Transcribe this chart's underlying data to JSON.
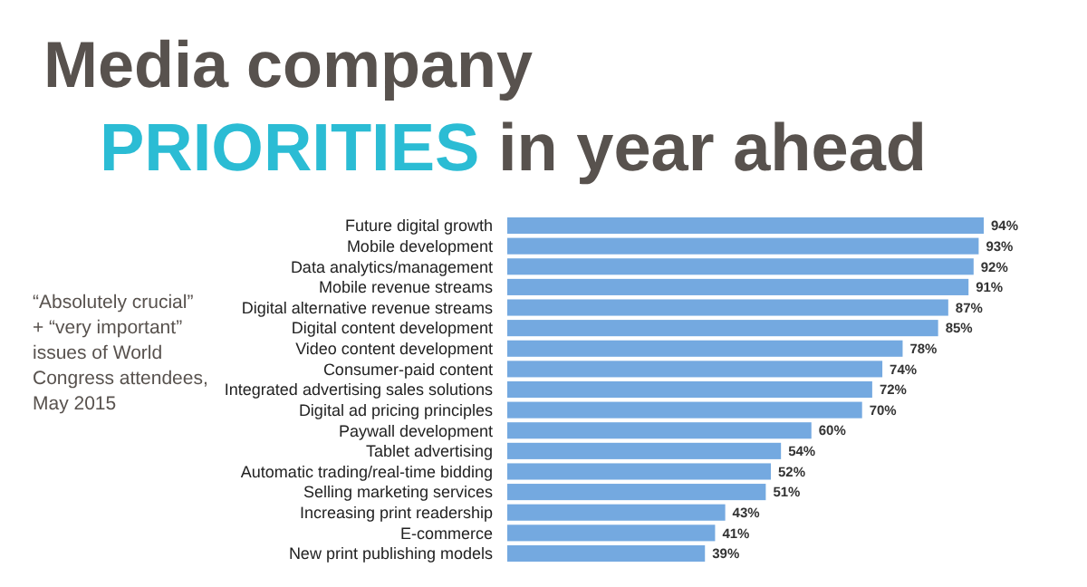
{
  "chart_data": {
    "type": "bar",
    "orientation": "horizontal",
    "title": "Media company",
    "subtitle": "PRIORITIES in year ahead",
    "categories": [
      "Future digital growth",
      "Mobile development",
      "Data analytics/management",
      "Mobile revenue streams",
      "Digital alternative revenue streams",
      "Digital content development",
      "Video content development",
      "Consumer-paid content",
      "Integrated advertising sales solutions",
      "Digital ad pricing principles",
      "Paywall development",
      "Tablet advertising",
      "Automatic trading/real-time bidding",
      "Selling marketing services",
      "Increasing print readership",
      "E-commerce",
      "New print publishing models"
    ],
    "values": [
      94,
      93,
      92,
      91,
      87,
      85,
      78,
      74,
      72,
      70,
      60,
      54,
      52,
      51,
      43,
      41,
      39
    ],
    "value_labels": [
      "94%",
      "93%",
      "92%",
      "91%",
      "87%",
      "85%",
      "78%",
      "74%",
      "72%",
      "70%",
      "60%",
      "54%",
      "52%",
      "51%",
      "43%",
      "41%",
      "39%"
    ],
    "color": "#74a9e0",
    "annotations": [
      "“Absolutely crucial” + “very important” issues of World Congress attendees, May 2015"
    ]
  }
}
